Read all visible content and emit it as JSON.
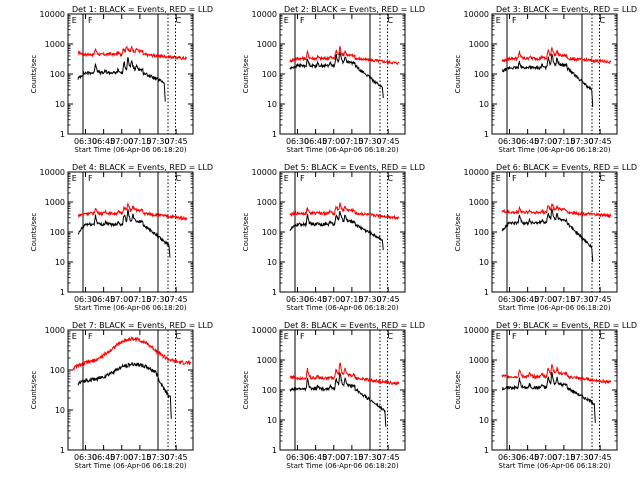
{
  "figure": {
    "background": "#ffffff",
    "event_color": "#000000",
    "lld_color": "#ff0000"
  },
  "chart_data": [
    {
      "type": "line",
      "title": "Det 1: BLACK = Events, RED = LLD",
      "xlabel": "Start Time (06-Apr-06 06:18:20)",
      "ylabel": "Counts/sec",
      "yscale": "log",
      "ylim": [
        1,
        10000
      ],
      "x_ticks": [
        "06:30",
        "06:45",
        "07:00",
        "07:15",
        "07:30",
        "07:45"
      ],
      "y_ticks": [
        "1",
        "10",
        "100",
        "1000",
        "10000"
      ],
      "x_range_min": [
        8,
        95
      ],
      "vlines": {
        "solid": [
          12,
          72
        ],
        "dotted": [
          80,
          86
        ]
      },
      "labels": [
        "E",
        "F",
        "C"
      ],
      "series": [
        {
          "name": "LLD",
          "shape": "lld",
          "base": 450,
          "spikes": [
            [
              22,
              1.6
            ],
            [
              33,
              1.15
            ],
            [
              40,
              1.2
            ],
            [
              44,
              1.35
            ],
            [
              47,
              1.6
            ],
            [
              51,
              1.45
            ],
            [
              55,
              1.3
            ]
          ],
          "points": [
            [
              8,
              520
            ],
            [
              95,
              330
            ]
          ]
        },
        {
          "name": "Events",
          "shape": "ev",
          "base": 110,
          "spikes": [
            [
              22,
              2.2
            ],
            [
              30,
              1.2
            ],
            [
              40,
              1.3
            ],
            [
              45,
              1.8
            ],
            [
              48,
              2.6
            ],
            [
              51,
              2.0
            ],
            [
              55,
              1.5
            ]
          ],
          "points": [
            [
              8,
              70
            ],
            [
              77,
              52
            ],
            [
              77.8,
              12
            ]
          ]
        }
      ]
    },
    {
      "type": "line",
      "title": "Det 2: BLACK = Events, RED = LLD",
      "xlabel": "Start Time (06-Apr-06 06:18:20)",
      "ylabel": "Counts/sec",
      "yscale": "log",
      "ylim": [
        1,
        10000
      ],
      "x_ticks": [
        "06:30",
        "06:45",
        "07:00",
        "07:15",
        "07:30",
        "07:45"
      ],
      "y_ticks": [
        "1",
        "10",
        "100",
        "1000",
        "10000"
      ],
      "x_range_min": [
        8,
        95
      ],
      "vlines": {
        "solid": [
          12,
          72
        ],
        "dotted": [
          80,
          86
        ]
      },
      "labels": [
        "E",
        "F",
        "C"
      ],
      "series": [
        {
          "name": "LLD",
          "shape": "lld",
          "base": 330,
          "spikes": [
            [
              22,
              1.7
            ],
            [
              30,
              1.2
            ],
            [
              40,
              1.2
            ],
            [
              45,
              1.5
            ],
            [
              48,
              2.0
            ],
            [
              52,
              1.5
            ]
          ],
          "points": [
            [
              8,
              270
            ],
            [
              95,
              230
            ]
          ]
        },
        {
          "name": "Events",
          "shape": "ev",
          "base": 190,
          "spikes": [
            [
              22,
              1.7
            ],
            [
              30,
              1.2
            ],
            [
              40,
              1.3
            ],
            [
              45,
              1.8
            ],
            [
              48,
              2.4
            ],
            [
              52,
              1.7
            ]
          ],
          "points": [
            [
              8,
              150
            ],
            [
              82,
              35
            ],
            [
              82.6,
              16
            ]
          ]
        }
      ]
    },
    {
      "type": "line",
      "title": "Det 3: BLACK = Events, RED = LLD",
      "xlabel": "Start Time (06-Apr-06 06:18:20)",
      "ylabel": "Counts/sec",
      "yscale": "log",
      "ylim": [
        1,
        10000
      ],
      "x_ticks": [
        "06:30",
        "06:45",
        "07:00",
        "07:15",
        "07:30",
        "07:45"
      ],
      "y_ticks": [
        "1",
        "10",
        "100",
        "1000",
        "10000"
      ],
      "x_range_min": [
        8,
        95
      ],
      "vlines": {
        "solid": [
          12,
          72
        ],
        "dotted": [
          80,
          86
        ]
      },
      "labels": [
        "E",
        "F",
        "C"
      ],
      "series": [
        {
          "name": "LLD",
          "shape": "lld",
          "base": 330,
          "spikes": [
            [
              22,
              1.7
            ],
            [
              30,
              1.2
            ],
            [
              40,
              1.2
            ],
            [
              45,
              1.5
            ],
            [
              48,
              2.0
            ],
            [
              52,
              1.5
            ]
          ],
          "points": [
            [
              8,
              270
            ],
            [
              95,
              250
            ]
          ]
        },
        {
          "name": "Events",
          "shape": "ev",
          "base": 160,
          "spikes": [
            [
              22,
              1.7
            ],
            [
              30,
              1.2
            ],
            [
              40,
              1.3
            ],
            [
              45,
              1.8
            ],
            [
              48,
              2.4
            ],
            [
              52,
              1.7
            ]
          ],
          "points": [
            [
              8,
              120
            ],
            [
              80,
              28
            ],
            [
              80.6,
              8
            ]
          ]
        }
      ]
    },
    {
      "type": "line",
      "title": "Det 4: BLACK = Events, RED = LLD",
      "xlabel": "Start Time (06-Apr-06 06:18:20)",
      "ylabel": "Counts/sec",
      "yscale": "log",
      "ylim": [
        1,
        10000
      ],
      "x_ticks": [
        "06:30",
        "06:45",
        "07:00",
        "07:15",
        "07:30",
        "07:45"
      ],
      "y_ticks": [
        "1",
        "10",
        "100",
        "1000",
        "10000"
      ],
      "x_range_min": [
        8,
        95
      ],
      "vlines": {
        "solid": [
          12,
          72
        ],
        "dotted": [
          80,
          86
        ]
      },
      "labels": [
        "E",
        "F",
        "C"
      ],
      "series": [
        {
          "name": "LLD",
          "shape": "lld",
          "base": 420,
          "spikes": [
            [
              22,
              1.6
            ],
            [
              30,
              1.2
            ],
            [
              40,
              1.2
            ],
            [
              45,
              1.4
            ],
            [
              48,
              1.7
            ],
            [
              52,
              1.4
            ]
          ],
          "points": [
            [
              8,
              350
            ],
            [
              95,
              280
            ]
          ]
        },
        {
          "name": "Events",
          "shape": "ev",
          "base": 180,
          "spikes": [
            [
              22,
              2.0
            ],
            [
              30,
              1.2
            ],
            [
              40,
              1.3
            ],
            [
              45,
              1.8
            ],
            [
              48,
              2.4
            ],
            [
              52,
              1.7
            ]
          ],
          "points": [
            [
              8,
              80
            ],
            [
              81,
              35
            ],
            [
              81.6,
              14
            ]
          ]
        }
      ]
    },
    {
      "type": "line",
      "title": "Det 5: BLACK = Events, RED = LLD",
      "xlabel": "Start Time (06-Apr-06 06:18:20)",
      "ylabel": "Counts/sec",
      "yscale": "log",
      "ylim": [
        1,
        10000
      ],
      "x_ticks": [
        "06:30",
        "06:45",
        "07:00",
        "07:15",
        "07:30",
        "07:45"
      ],
      "y_ticks": [
        "1",
        "10",
        "100",
        "1000",
        "10000"
      ],
      "x_range_min": [
        8,
        95
      ],
      "vlines": {
        "solid": [
          12,
          72
        ],
        "dotted": [
          80,
          86
        ]
      },
      "labels": [
        "E",
        "F",
        "C"
      ],
      "series": [
        {
          "name": "LLD",
          "shape": "lld",
          "base": 420,
          "spikes": [
            [
              22,
              1.6
            ],
            [
              30,
              1.2
            ],
            [
              40,
              1.2
            ],
            [
              45,
              1.4
            ],
            [
              48,
              1.7
            ],
            [
              52,
              1.4
            ]
          ],
          "points": [
            [
              8,
              380
            ],
            [
              95,
              300
            ]
          ]
        },
        {
          "name": "Events",
          "shape": "ev",
          "base": 180,
          "spikes": [
            [
              22,
              2.0
            ],
            [
              30,
              1.2
            ],
            [
              40,
              1.3
            ],
            [
              45,
              1.8
            ],
            [
              48,
              2.4
            ],
            [
              52,
              1.7
            ]
          ],
          "points": [
            [
              8,
              120
            ],
            [
              82,
              55
            ],
            [
              82.6,
              25
            ]
          ]
        }
      ]
    },
    {
      "type": "line",
      "title": "Det 6: BLACK = Events, RED = LLD",
      "xlabel": "Start Time (06-Apr-06 06:18:20)",
      "ylabel": "Counts/sec",
      "yscale": "log",
      "ylim": [
        1,
        10000
      ],
      "x_ticks": [
        "06:30",
        "06:45",
        "07:00",
        "07:15",
        "07:30",
        "07:45"
      ],
      "y_ticks": [
        "1",
        "10",
        "100",
        "1000",
        "10000"
      ],
      "x_range_min": [
        8,
        95
      ],
      "vlines": {
        "solid": [
          12,
          72
        ],
        "dotted": [
          80,
          86
        ]
      },
      "labels": [
        "E",
        "F",
        "C"
      ],
      "series": [
        {
          "name": "LLD",
          "shape": "lld",
          "base": 450,
          "spikes": [
            [
              22,
              1.5
            ],
            [
              30,
              1.2
            ],
            [
              40,
              1.2
            ],
            [
              45,
              1.4
            ],
            [
              48,
              1.6
            ],
            [
              52,
              1.3
            ]
          ],
          "points": [
            [
              8,
              500
            ],
            [
              95,
              350
            ]
          ]
        },
        {
          "name": "Events",
          "shape": "ev",
          "base": 200,
          "spikes": [
            [
              22,
              2.0
            ],
            [
              30,
              1.3
            ],
            [
              40,
              1.3
            ],
            [
              45,
              1.8
            ],
            [
              48,
              2.4
            ],
            [
              52,
              1.7
            ]
          ],
          "points": [
            [
              8,
              110
            ],
            [
              80,
              30
            ],
            [
              80.6,
              10
            ]
          ]
        }
      ]
    },
    {
      "type": "line",
      "title": "Det 7: BLACK = Events, RED = LLD",
      "xlabel": "Start Time (06-Apr-06 06:18:20)",
      "ylabel": "Counts/sec",
      "yscale": "log",
      "ylim": [
        1,
        1000
      ],
      "x_ticks": [
        "06:30",
        "06:45",
        "07:00",
        "07:15",
        "07:30",
        "07:45"
      ],
      "y_ticks": [
        "1",
        "10",
        "100",
        "1000"
      ],
      "x_range_min": [
        4,
        98
      ],
      "vlines": {
        "solid": [
          12,
          72
        ],
        "dotted": [
          80,
          86
        ]
      },
      "labels": [
        "E",
        "F",
        "C"
      ],
      "series": [
        {
          "name": "LLD",
          "shape": "hump",
          "peak_x": 52,
          "peak": 600,
          "base": 150,
          "points": [
            [
              4,
              110
            ],
            [
              98,
              160
            ]
          ]
        },
        {
          "name": "Events",
          "shape": "hump",
          "peak_x": 53,
          "peak": 140,
          "base": 55,
          "points": [
            [
              8,
              45
            ],
            [
              82,
              20
            ],
            [
              82.6,
              6
            ]
          ]
        }
      ]
    },
    {
      "type": "line",
      "title": "Det 8: BLACK = Events, RED = LLD",
      "xlabel": "Start Time (06-Apr-06 06:18:20)",
      "ylabel": "Counts/sec",
      "yscale": "log",
      "ylim": [
        1,
        10000
      ],
      "x_ticks": [
        "06:30",
        "06:45",
        "07:00",
        "07:15",
        "07:30",
        "07:45"
      ],
      "y_ticks": [
        "1",
        "10",
        "100",
        "1000",
        "10000"
      ],
      "x_range_min": [
        8,
        95
      ],
      "vlines": {
        "solid": [
          12,
          72
        ],
        "dotted": [
          80,
          86
        ]
      },
      "labels": [
        "E",
        "F",
        "C"
      ],
      "series": [
        {
          "name": "LLD",
          "shape": "lld",
          "base": 250,
          "spikes": [
            [
              22,
              2.0
            ],
            [
              30,
              1.3
            ],
            [
              40,
              1.2
            ],
            [
              45,
              1.6
            ],
            [
              48,
              2.8
            ],
            [
              52,
              1.8
            ]
          ],
          "points": [
            [
              8,
              280
            ],
            [
              95,
              160
            ]
          ]
        },
        {
          "name": "Events",
          "shape": "ev",
          "base": 110,
          "spikes": [
            [
              22,
              2.2
            ],
            [
              30,
              1.3
            ],
            [
              40,
              1.3
            ],
            [
              45,
              1.8
            ],
            [
              48,
              3.0
            ],
            [
              52,
              1.9
            ]
          ],
          "points": [
            [
              8,
              100
            ],
            [
              84,
              20
            ],
            [
              84.6,
              6
            ]
          ]
        }
      ]
    },
    {
      "type": "line",
      "title": "Det 9: BLACK = Events, RED = LLD",
      "xlabel": "Start Time (06-Apr-06 06:18:20)",
      "ylabel": "Counts/sec",
      "yscale": "log",
      "ylim": [
        1,
        10000
      ],
      "x_ticks": [
        "06:30",
        "06:45",
        "07:00",
        "07:15",
        "07:30",
        "07:45"
      ],
      "y_ticks": [
        "1",
        "10",
        "100",
        "1000",
        "10000"
      ],
      "x_range_min": [
        8,
        95
      ],
      "vlines": {
        "solid": [
          12,
          72
        ],
        "dotted": [
          80,
          86
        ]
      },
      "labels": [
        "E",
        "F",
        "C"
      ],
      "series": [
        {
          "name": "LLD",
          "shape": "lld",
          "base": 280,
          "spikes": [
            [
              22,
              1.8
            ],
            [
              30,
              1.3
            ],
            [
              40,
              1.3
            ],
            [
              45,
              1.5
            ],
            [
              48,
              2.2
            ],
            [
              52,
              1.6
            ]
          ],
          "points": [
            [
              8,
              300
            ],
            [
              95,
              180
            ]
          ]
        },
        {
          "name": "Events",
          "shape": "ev",
          "base": 120,
          "spikes": [
            [
              22,
              2.0
            ],
            [
              30,
              1.3
            ],
            [
              40,
              1.3
            ],
            [
              45,
              1.8
            ],
            [
              48,
              2.6
            ],
            [
              52,
              1.8
            ]
          ],
          "points": [
            [
              8,
              110
            ],
            [
              82,
              35
            ],
            [
              82.6,
              8
            ]
          ]
        }
      ]
    }
  ]
}
